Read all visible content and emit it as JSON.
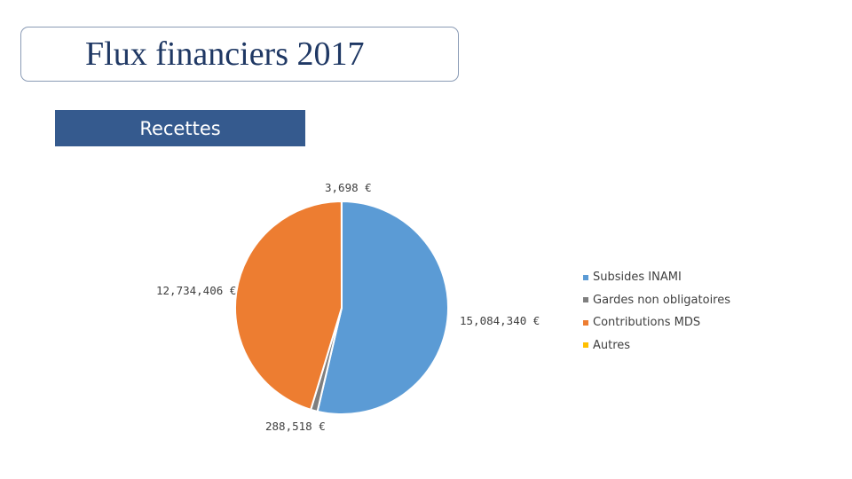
{
  "header": {
    "title": "Flux financiers 2017",
    "subtitle": "Recettes"
  },
  "chart_data": {
    "type": "pie",
    "title": "",
    "start_angle_deg": 0,
    "direction": "clockwise",
    "slices": [
      {
        "label": "Subsides INAMI",
        "value": 15084340,
        "value_label": "15,084,340 €",
        "color": "#5b9bd5"
      },
      {
        "label": "Gardes non obligatoires",
        "value": 288518,
        "value_label": "288,518 €",
        "color": "#7f7f7f"
      },
      {
        "label": "Contributions MDS",
        "value": 12734406,
        "value_label": "12,734,406 €",
        "color": "#ed7d31"
      },
      {
        "label": "Autres",
        "value": 3698,
        "value_label": "3,698 €",
        "color": "#ffc000"
      }
    ],
    "legend_position": "right"
  }
}
